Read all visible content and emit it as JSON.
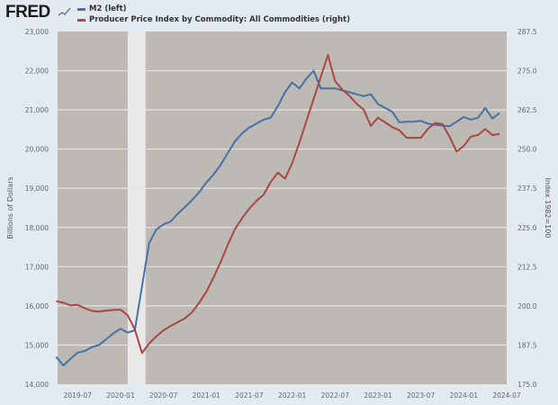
{
  "logo": {
    "text": "FRED"
  },
  "chart_data": {
    "type": "line",
    "title": "",
    "legend_placement": "top-left",
    "grid": true,
    "colors": {
      "background": "#e3eaf0",
      "plot_background": "#bdb9b5",
      "grid": "#e6e4e1",
      "recession": "#e8e8e8"
    },
    "x": [
      "2019-04",
      "2019-05",
      "2019-06",
      "2019-07",
      "2019-08",
      "2019-09",
      "2019-10",
      "2019-11",
      "2019-12",
      "2020-01",
      "2020-02",
      "2020-03",
      "2020-04",
      "2020-05",
      "2020-06",
      "2020-07",
      "2020-08",
      "2020-09",
      "2020-10",
      "2020-11",
      "2020-12",
      "2021-01",
      "2021-02",
      "2021-03",
      "2021-04",
      "2021-05",
      "2021-06",
      "2021-07",
      "2021-08",
      "2021-09",
      "2021-10",
      "2021-11",
      "2021-12",
      "2022-01",
      "2022-02",
      "2022-03",
      "2022-04",
      "2022-05",
      "2022-06",
      "2022-07",
      "2022-08",
      "2022-09",
      "2022-10",
      "2022-11",
      "2022-12",
      "2023-01",
      "2023-02",
      "2023-03",
      "2023-04",
      "2023-05",
      "2023-06",
      "2023-07",
      "2023-08",
      "2023-09",
      "2023-10",
      "2023-11",
      "2023-12",
      "2024-01",
      "2024-02",
      "2024-03",
      "2024-04",
      "2024-05",
      "2024-06"
    ],
    "xlim": [
      "2019-04",
      "2024-07"
    ],
    "xticks": [
      "2019-07",
      "2020-01",
      "2020-07",
      "2021-01",
      "2021-07",
      "2022-01",
      "2022-07",
      "2023-01",
      "2023-07",
      "2024-01",
      "2024-07"
    ],
    "recession": [
      "2020-02",
      "2020-04"
    ],
    "ylabel_left": "Billions of Dollars",
    "ylabel_right": "Index 1982=100",
    "ylim_left": [
      14000,
      23000
    ],
    "ylim_right": [
      175,
      287.5
    ],
    "yticks_left": [
      "14,000",
      "15,000",
      "16,000",
      "17,000",
      "18,000",
      "19,000",
      "20,000",
      "21,000",
      "22,000",
      "23,000"
    ],
    "yticks_right": [
      "175.0",
      "187.5",
      "200.0",
      "212.5",
      "225.0",
      "237.5",
      "250.0",
      "262.5",
      "275.0",
      "287.5"
    ],
    "series": [
      {
        "name": "M2 (left)",
        "axis": "left",
        "color": "#4572a7",
        "values": [
          14700,
          14480,
          14650,
          14810,
          14850,
          14950,
          15000,
          15150,
          15300,
          15420,
          15320,
          15380,
          16500,
          17600,
          17950,
          18080,
          18150,
          18350,
          18520,
          18700,
          18900,
          19150,
          19350,
          19600,
          19900,
          20200,
          20400,
          20550,
          20650,
          20750,
          20800,
          21100,
          21450,
          21700,
          21550,
          21800,
          22000,
          21550,
          21550,
          21550,
          21500,
          21450,
          21400,
          21350,
          21400,
          21150,
          21050,
          20950,
          20680,
          20700,
          20700,
          20720,
          20650,
          20620,
          20600,
          20580,
          20700,
          20820,
          20750,
          20800,
          21050,
          20780,
          20920
        ]
      },
      {
        "name": "Producer Price Index by Commodity: All Commodities (right)",
        "axis": "right",
        "color": "#aa4643",
        "values": [
          201.5,
          201.0,
          200.2,
          200.3,
          199.3,
          198.4,
          198.2,
          198.5,
          198.7,
          198.8,
          197.0,
          192.5,
          185.0,
          188.0,
          190.3,
          192.2,
          193.6,
          194.8,
          196.0,
          198.0,
          201.0,
          204.5,
          209.0,
          214.0,
          219.5,
          224.5,
          228.0,
          231.0,
          233.5,
          235.4,
          239.5,
          242.5,
          240.6,
          245.5,
          252.0,
          259.0,
          266.0,
          273.0,
          280.0,
          271.7,
          269.0,
          267.0,
          264.5,
          262.6,
          257.4,
          260.0,
          258.5,
          257.0,
          256.0,
          253.6,
          253.6,
          253.6,
          256.5,
          258.3,
          258.0,
          254.0,
          249.2,
          251.0,
          254.0,
          254.5,
          256.4,
          254.5,
          254.8
        ]
      }
    ]
  }
}
